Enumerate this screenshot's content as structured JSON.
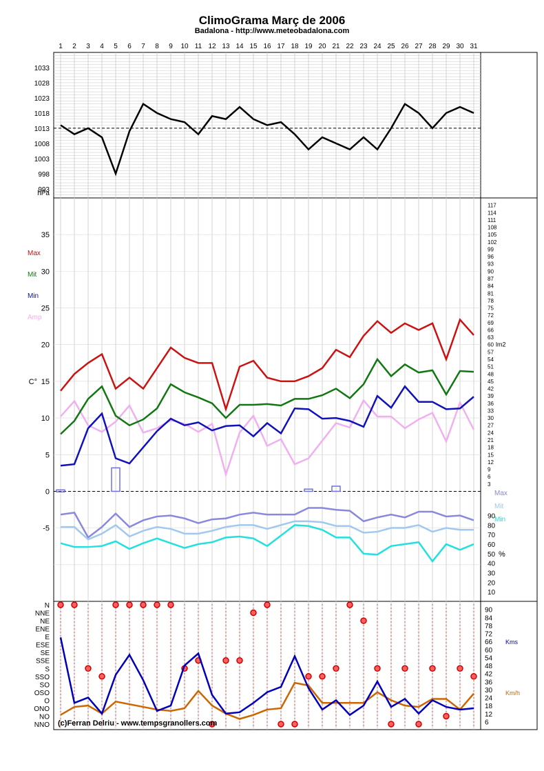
{
  "title": "ClimoGrama Març de 2006",
  "subtitle": "Badalona - http://www.meteobadalona.com",
  "credit": "(c)Ferran Delriu - www.tempsgranollers.com",
  "chart_data": [
    {
      "type": "line",
      "name": "pressure",
      "x": [
        1,
        2,
        3,
        4,
        5,
        6,
        7,
        8,
        9,
        10,
        11,
        12,
        13,
        14,
        15,
        16,
        17,
        18,
        19,
        20,
        21,
        22,
        23,
        24,
        25,
        26,
        27,
        28,
        29,
        30,
        31
      ],
      "xtick_labels": [
        "1",
        "2",
        "3",
        "4",
        "5",
        "6",
        "7",
        "8",
        "9",
        "10",
        "11",
        "12",
        "13",
        "14",
        "15",
        "16",
        "17",
        "18",
        "19",
        "20",
        "21",
        "22",
        "23",
        "24",
        "25",
        "26",
        "27",
        "28",
        "29",
        "30",
        "31"
      ],
      "ylabel": "hPa",
      "yticks": [
        "1033",
        "1028",
        "1023",
        "1018",
        "1013",
        "1008",
        "1003",
        "998",
        "993"
      ],
      "ylim": [
        990,
        1038
      ],
      "reference_line": 1013,
      "series": [
        {
          "color": "#000000",
          "values": [
            1014,
            1011,
            1013,
            1010,
            998,
            1012,
            1021,
            1018,
            1016,
            1015,
            1011,
            1017,
            1016,
            1020,
            1016,
            1014,
            1015,
            1011,
            1006,
            1010,
            1008,
            1006,
            1010,
            1006,
            1013,
            1021,
            1018,
            1013,
            1018,
            1020,
            1018
          ]
        }
      ]
    },
    {
      "type": "line",
      "name": "temperature-humidity",
      "x": [
        1,
        2,
        3,
        4,
        5,
        6,
        7,
        8,
        9,
        10,
        11,
        12,
        13,
        14,
        15,
        16,
        17,
        18,
        19,
        20,
        21,
        22,
        23,
        24,
        25,
        26,
        27,
        28,
        29,
        30,
        31
      ],
      "ylabel": "C°",
      "yticks": [
        "35",
        "30",
        "25",
        "20",
        "15",
        "10",
        "5",
        "0",
        "-5"
      ],
      "ylim": [
        -15,
        40
      ],
      "right_ticks": [
        "117",
        "114",
        "111",
        "108",
        "105",
        "102",
        "99",
        "96",
        "93",
        "90",
        "87",
        "84",
        "81",
        "78",
        "75",
        "72",
        "69",
        "66",
        "63",
        "60",
        "57",
        "54",
        "51",
        "48",
        "45",
        "42",
        "39",
        "36",
        "33",
        "30",
        "27",
        "24",
        "21",
        "18",
        "15",
        "12",
        "9",
        "6",
        "3"
      ],
      "right_unit": "lm2",
      "humidity_ticks": [
        "90",
        "80",
        "70",
        "60",
        "50",
        "40",
        "30",
        "20",
        "10"
      ],
      "humidity_unit": "%",
      "humidity_ylim": [
        0,
        100
      ],
      "series": [
        {
          "name": "Max",
          "color": "#cc1111",
          "values": [
            13.7,
            16.0,
            17.5,
            18.7,
            14.0,
            15.5,
            14.0,
            16.8,
            19.6,
            18.2,
            17.5,
            17.5,
            11.2,
            17.0,
            17.8,
            15.5,
            15.0,
            15.0,
            15.7,
            16.8,
            19.3,
            18.3,
            21.2,
            23.2,
            21.6,
            22.9,
            22.0,
            22.9,
            18.0,
            23.4,
            21.3
          ]
        },
        {
          "name": "Mit",
          "color": "#117711",
          "values": [
            7.8,
            9.6,
            12.6,
            14.3,
            10.3,
            9.0,
            9.8,
            11.3,
            14.6,
            13.5,
            12.8,
            12.0,
            10.0,
            11.8,
            11.8,
            11.9,
            11.7,
            12.6,
            12.6,
            13.1,
            14.0,
            12.7,
            14.6,
            18.0,
            15.7,
            17.3,
            16.2,
            16.5,
            13.2,
            16.4,
            16.3
          ]
        },
        {
          "name": "Min",
          "color": "#1111bb",
          "values": [
            3.5,
            3.7,
            8.6,
            10.6,
            4.5,
            3.8,
            6.0,
            8.2,
            9.9,
            9.0,
            9.4,
            8.3,
            8.9,
            9.0,
            7.5,
            9.3,
            7.9,
            11.3,
            11.2,
            9.9,
            10.0,
            9.6,
            8.8,
            13.0,
            11.4,
            14.3,
            12.2,
            12.2,
            11.2,
            11.3,
            12.9
          ]
        },
        {
          "name": "Amp",
          "color": "#f0b0f0",
          "values": [
            10.2,
            12.3,
            9.0,
            8.1,
            9.5,
            11.7,
            8.0,
            8.6,
            9.7,
            9.2,
            8.1,
            9.2,
            2.3,
            8.0,
            10.3,
            6.2,
            7.1,
            3.7,
            4.5,
            6.9,
            9.3,
            8.7,
            12.4,
            10.2,
            10.2,
            8.6,
            9.8,
            10.7,
            6.8,
            12.1,
            8.4
          ]
        }
      ],
      "humidity_series": [
        {
          "name": "Max",
          "color": "#8888dd",
          "values": [
            91,
            93,
            67,
            78,
            92,
            78,
            85,
            89,
            90,
            87,
            82,
            86,
            87,
            91,
            93,
            91,
            91,
            91,
            98,
            98,
            96,
            95,
            84,
            88,
            91,
            88,
            94,
            94,
            89,
            90,
            85
          ]
        },
        {
          "name": "Mit",
          "color": "#a0c8f0",
          "values": [
            78,
            78,
            65,
            71,
            80,
            68,
            74,
            78,
            76,
            71,
            71,
            74,
            78,
            80,
            80,
            76,
            80,
            84,
            84,
            83,
            79,
            79,
            72,
            73,
            77,
            77,
            80,
            73,
            77,
            75,
            75
          ]
        },
        {
          "name": "Min",
          "color": "#22e0e0",
          "values": [
            61,
            57,
            57,
            58,
            63,
            55,
            61,
            66,
            61,
            56,
            60,
            62,
            67,
            68,
            66,
            58,
            69,
            80,
            79,
            75,
            67,
            67,
            50,
            49,
            58,
            60,
            62,
            42,
            60,
            54,
            60
          ]
        }
      ],
      "rain_bars": [
        {
          "day": 1,
          "value": 0.2
        },
        {
          "day": 5,
          "value": 3.2
        },
        {
          "day": 19,
          "value": 0.3
        },
        {
          "day": 21,
          "value": 0.7
        }
      ]
    },
    {
      "type": "line",
      "name": "wind",
      "x": [
        1,
        2,
        3,
        4,
        5,
        6,
        7,
        8,
        9,
        10,
        11,
        12,
        13,
        14,
        15,
        16,
        17,
        18,
        19,
        20,
        21,
        22,
        23,
        24,
        25,
        26,
        27,
        28,
        29,
        30,
        31
      ],
      "direction_labels": [
        "N",
        "NNE",
        "NE",
        "ENE",
        "E",
        "ESE",
        "SE",
        "SSE",
        "S",
        "SSO",
        "SO",
        "OSO",
        "O",
        "ONO",
        "NO",
        "NNO"
      ],
      "speed_ticks": [
        "90",
        "84",
        "78",
        "72",
        "66",
        "60",
        "54",
        "48",
        "42",
        "36",
        "30",
        "24",
        "18",
        "12",
        "6"
      ],
      "speed_ylim": [
        0,
        96
      ],
      "legend_kms": "Kms",
      "legend_kmh": "Km/h",
      "dominant_direction": [
        "N",
        "N",
        "S",
        "SSO",
        "N",
        "N",
        "N",
        "N",
        "N",
        "S",
        "SSE",
        "NNO",
        "SSE",
        "SSE",
        "NNE",
        "N",
        "NNO",
        "NNO",
        "SSO",
        "SSO",
        "S",
        "N",
        "NE",
        "S",
        "NNO",
        "S",
        "NNO",
        "S",
        "NO",
        "S",
        "SSO"
      ],
      "series": [
        {
          "name": "Kms",
          "color": "#0000bb",
          "values": [
            69,
            20,
            24,
            12,
            41,
            56,
            37,
            14,
            18,
            48,
            57,
            26,
            12,
            13,
            20,
            28,
            32,
            55,
            31,
            15,
            22,
            11,
            18,
            36,
            17,
            23,
            12,
            22,
            17,
            15,
            16
          ]
        },
        {
          "name": "Km/h",
          "color": "#cc6600",
          "values": [
            11,
            17,
            18,
            12,
            21,
            19,
            17,
            15,
            14,
            16,
            29,
            18,
            12,
            8,
            11,
            15,
            16,
            35,
            33,
            20,
            20,
            20,
            20,
            28,
            22,
            18,
            17,
            23,
            23,
            15,
            27
          ]
        }
      ]
    }
  ]
}
